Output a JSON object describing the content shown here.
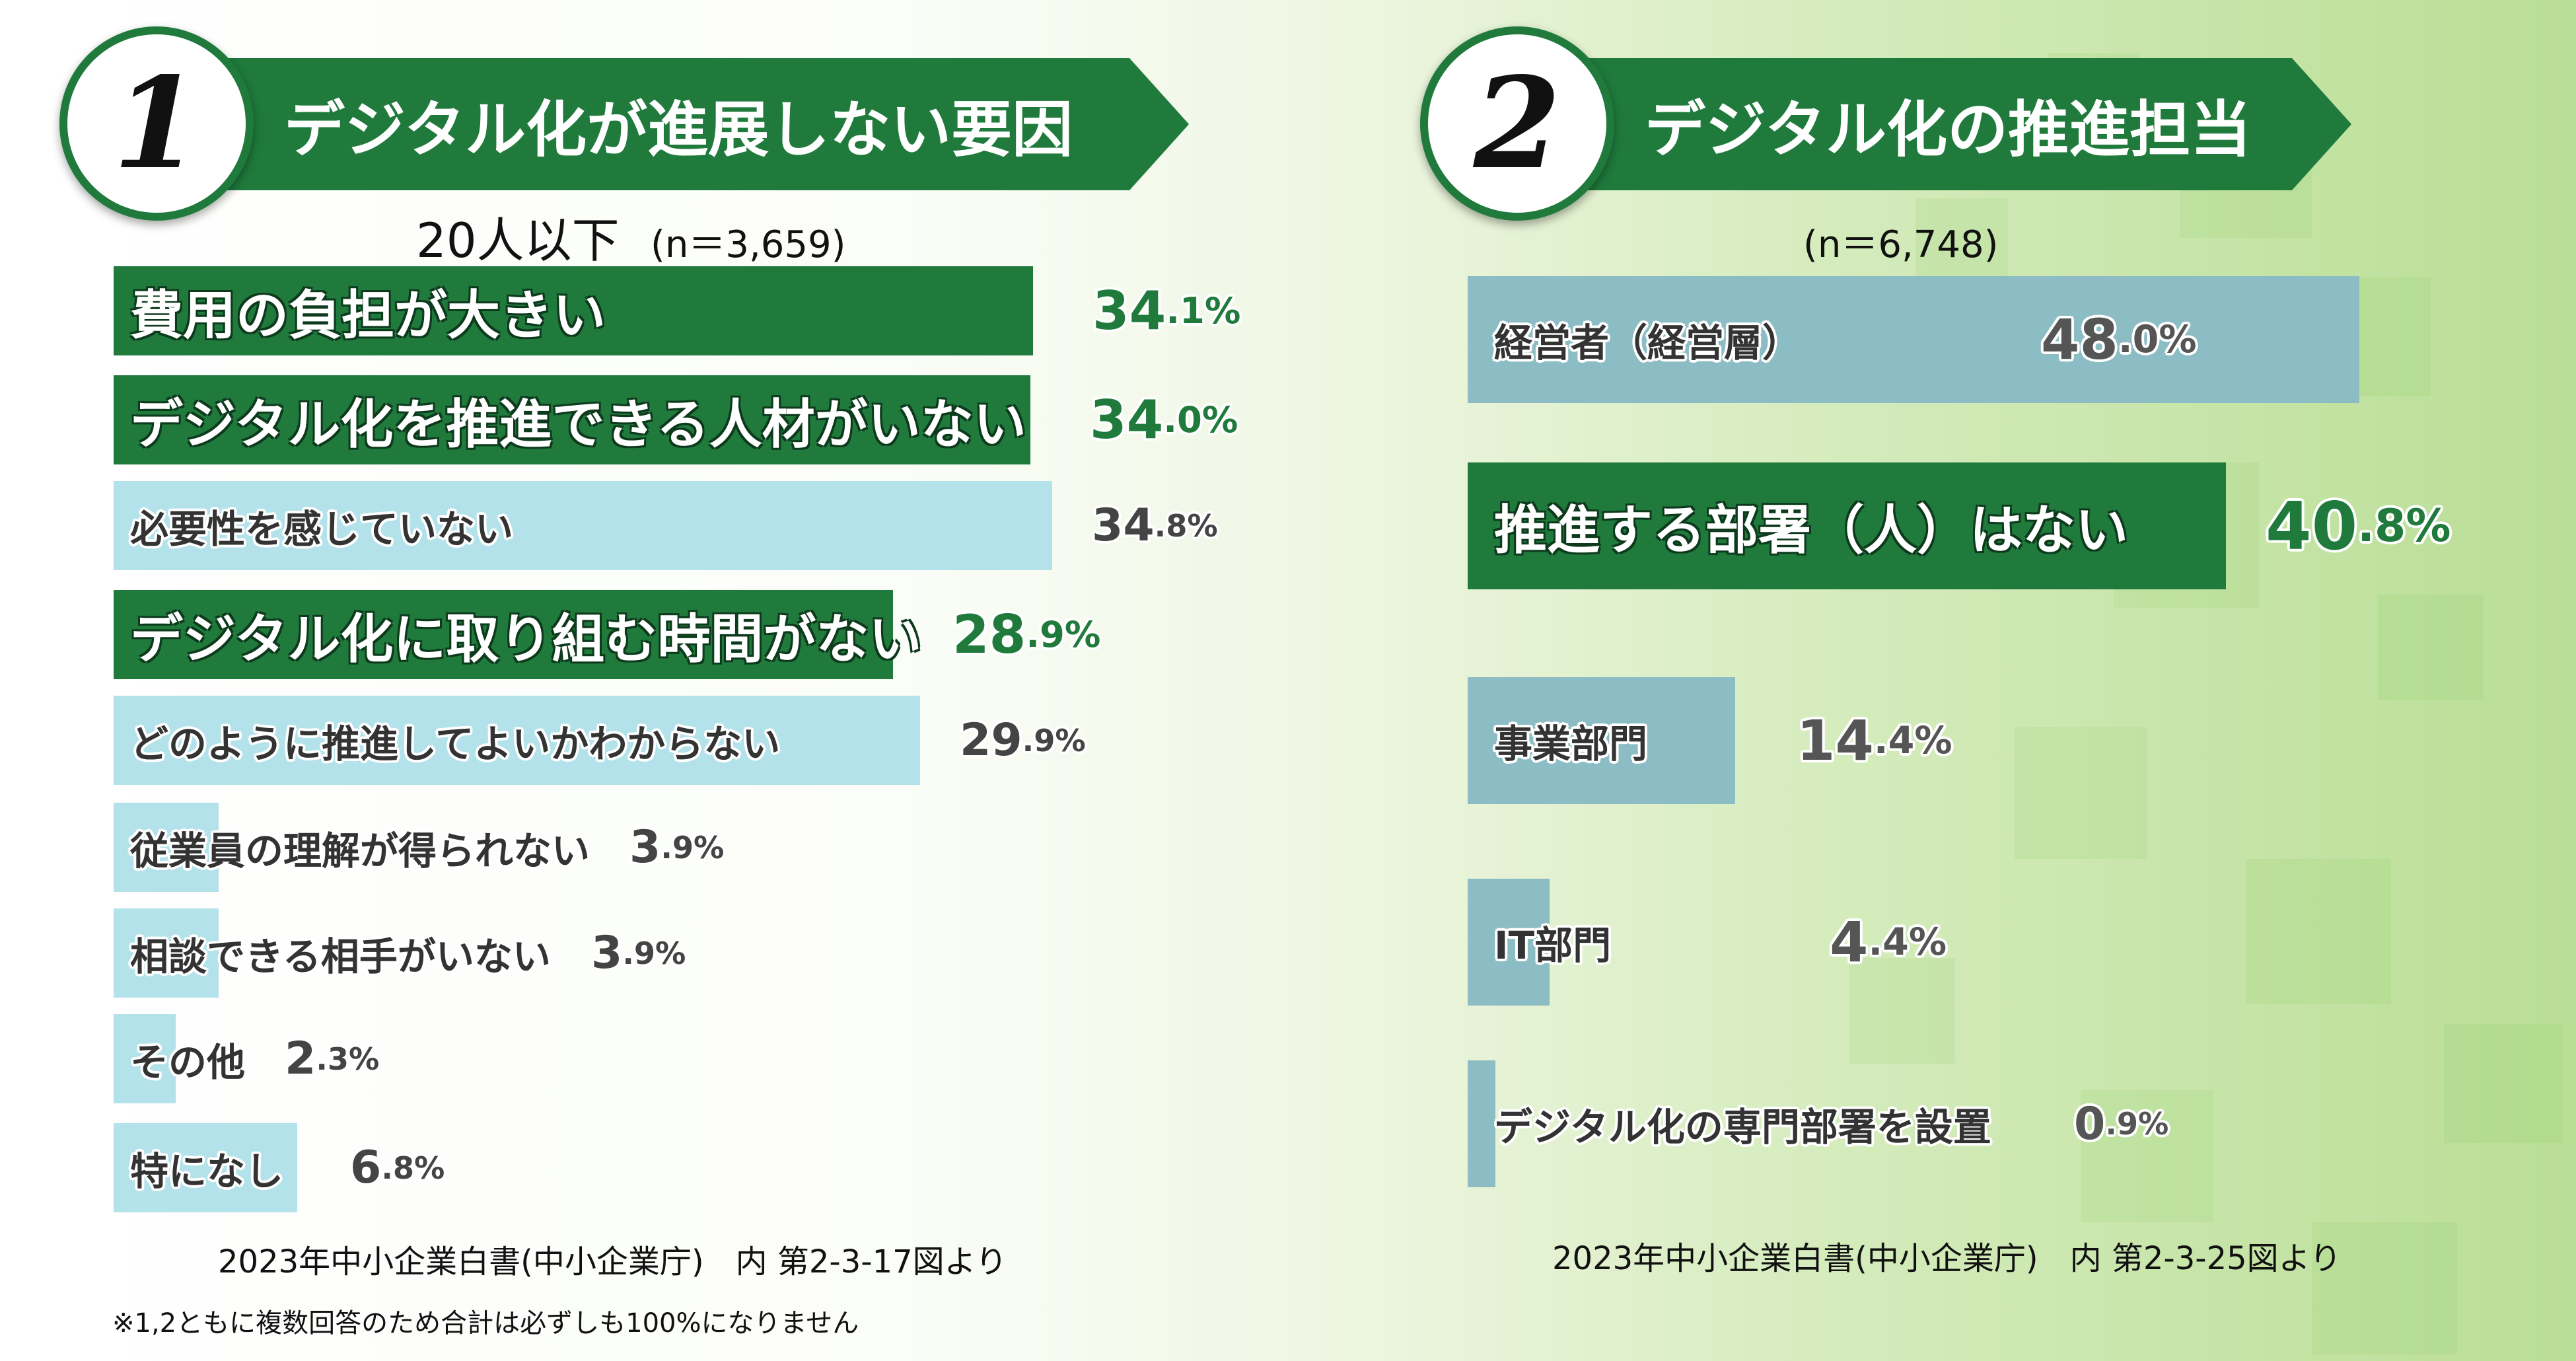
{
  "panel1": {
    "number": "1",
    "title": "デジタル化が進展しない要因",
    "subtitle_group": "20人以下",
    "n_label": "(n＝3,659)",
    "source": "2023年中小企業白書(中小企業庁)　内 第2-3-17図より",
    "footnote": "※1,2ともに複数回答のため合計は必ずしも100%になりません"
  },
  "panel2": {
    "number": "2",
    "title": "デジタル化の推進担当",
    "n_label": "(n＝6,748)",
    "source": "2023年中小企業白書(中小企業庁)　内 第2-3-25図より"
  },
  "colors": {
    "dark_green": "#1f7a3c",
    "light_blue": "#b3e2ea",
    "steel_blue": "#8cbcc4",
    "value_green": "#1f7a3c",
    "value_gray": "#555555"
  },
  "chart_data": [
    {
      "type": "bar",
      "orientation": "horizontal",
      "title": "デジタル化が進展しない要因",
      "categories": [
        "費用の負担が大きい",
        "デジタル化を推進できる人材がいない",
        "必要性を感じていない",
        "デジタル化に取り組む時間がない",
        "どのように推進してよいかわからない",
        "従業員の理解が得られない",
        "相談できる相手がいない",
        "その他",
        "特になし"
      ],
      "values": [
        34.1,
        34.0,
        34.8,
        28.9,
        29.9,
        3.9,
        3.9,
        2.3,
        6.8
      ],
      "value_labels": [
        [
          "34",
          ".1%"
        ],
        [
          "34",
          ".0%"
        ],
        [
          "34",
          ".8%"
        ],
        [
          "28",
          ".9%"
        ],
        [
          "29",
          ".9%"
        ],
        [
          "3",
          ".9%"
        ],
        [
          "3",
          ".9%"
        ],
        [
          "2",
          ".3%"
        ],
        [
          "6",
          ".8%"
        ]
      ],
      "highlight": [
        true,
        true,
        false,
        true,
        false,
        false,
        false,
        false,
        false
      ],
      "xlim": [
        0,
        36
      ]
    },
    {
      "type": "bar",
      "orientation": "horizontal",
      "title": "デジタル化の推進担当",
      "categories": [
        "経営者（経営層）",
        "推進する部署（人）はない",
        "事業部門",
        "IT部門",
        "デジタル化の専門部署を設置"
      ],
      "values": [
        48.0,
        40.8,
        14.4,
        4.4,
        0.9
      ],
      "value_labels": [
        [
          "48",
          ".0%"
        ],
        [
          "40",
          ".8%"
        ],
        [
          "14",
          ".4%"
        ],
        [
          "4",
          ".4%"
        ],
        [
          "0",
          ".9%"
        ]
      ],
      "highlight": [
        false,
        true,
        false,
        false,
        false
      ],
      "xlim": [
        0,
        48
      ]
    }
  ]
}
